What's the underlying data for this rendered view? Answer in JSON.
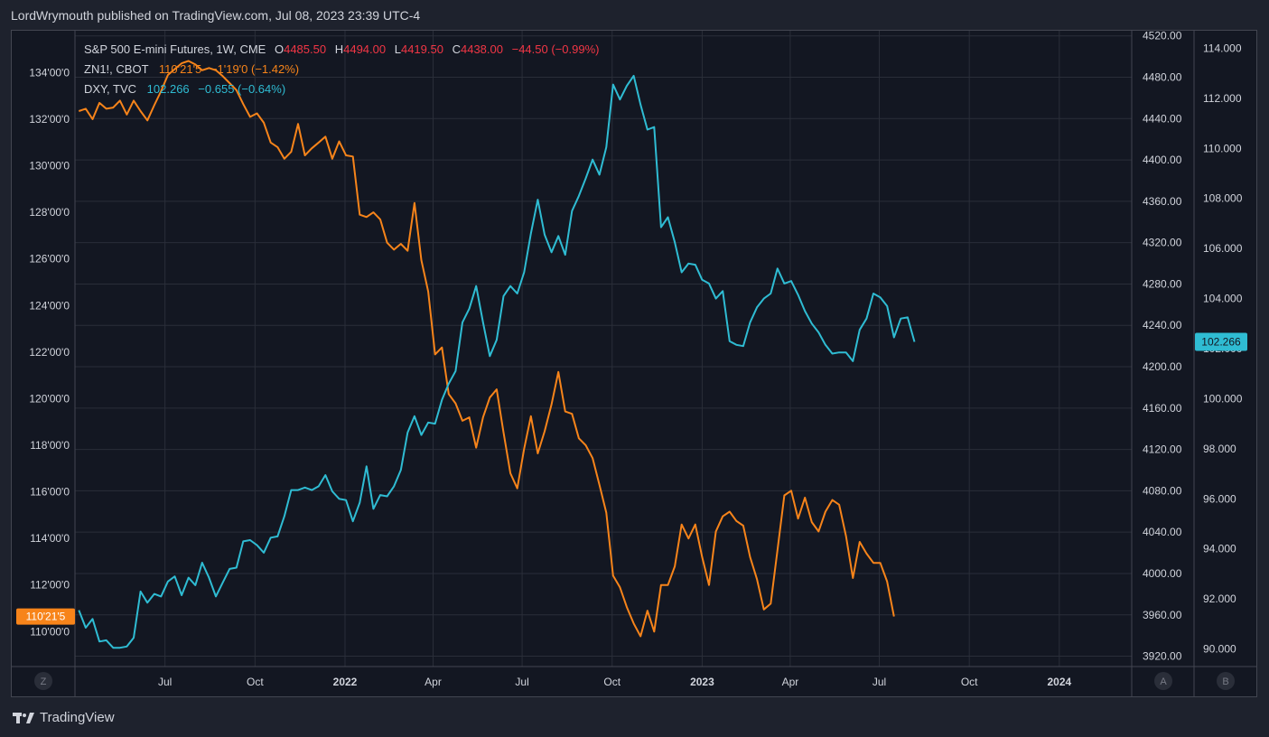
{
  "header": {
    "text": "LordWrymouth published on TradingView.com, Jul 08, 2023 23:39 UTC-4"
  },
  "legend": {
    "es": {
      "name": "S&P 500 E-mini Futures, 1W, CME",
      "o_label": "O",
      "o": "4485.50",
      "h_label": "H",
      "h": "4494.00",
      "l_label": "L",
      "l": "4419.50",
      "c_label": "C",
      "c": "4438.00",
      "chg": "−44.50 (−0.99%)"
    },
    "zn": {
      "name": "ZN1!, CBOT",
      "value": "110'21'5",
      "chg": "−1'19'0 (−1.42%)"
    },
    "dxy": {
      "name": "DXY, TVC",
      "value": "102.266",
      "chg": "−0.655 (−0.64%)"
    }
  },
  "buttons": {
    "z": "Z",
    "a": "A",
    "b": "B"
  },
  "footer": {
    "brand": "TradingView"
  },
  "colors": {
    "zn": "#f7841a",
    "dxy": "#2fbcd3",
    "red": "#f23645",
    "bg": "#131722",
    "grid": "#2a2e39",
    "text": "#d1d4dc"
  },
  "chart_data": {
    "type": "line",
    "x_tick_labels": [
      "Jul",
      "Oct",
      "2022",
      "Apr",
      "Jul",
      "Oct",
      "2023",
      "Apr",
      "Jul",
      "Oct",
      "2024"
    ],
    "axes": {
      "left": {
        "series": "ZN1!",
        "ticks": [
          "110'00'0",
          "112'00'0",
          "114'00'0",
          "116'00'0",
          "118'00'0",
          "120'00'0",
          "122'00'0",
          "124'00'0",
          "126'00'0",
          "128'00'0",
          "130'00'0",
          "132'00'0",
          "134'00'0"
        ],
        "range": [
          108.5,
          135.8
        ],
        "current_label": "110'21'5"
      },
      "mid": {
        "series": "S&P 500 E-mini Futures",
        "ticks": [
          "3920.00",
          "3960.00",
          "4000.00",
          "4040.00",
          "4080.00",
          "4120.00",
          "4160.00",
          "4200.00",
          "4240.00",
          "4280.00",
          "4320.00",
          "4360.00",
          "4400.00",
          "4440.00",
          "4480.00",
          "4520.00"
        ],
        "range": [
          3910,
          4525
        ]
      },
      "right": {
        "series": "DXY",
        "ticks": [
          "90.000",
          "92.000",
          "94.000",
          "96.000",
          "98.000",
          "100.000",
          "102.000",
          "104.000",
          "106.000",
          "108.000",
          "110.000",
          "112.000",
          "114.000"
        ],
        "range": [
          89.3,
          114.7
        ],
        "current_label": "102.266"
      }
    },
    "date_range": [
      "2021-03-31",
      "2024-03-15"
    ],
    "series": [
      {
        "name": "ZN1!",
        "axis": "left",
        "points": [
          [
            "2021-04-04",
            132.35
          ],
          [
            "2021-04-11",
            132.45
          ],
          [
            "2021-04-18",
            132.0
          ],
          [
            "2021-04-25",
            132.7
          ],
          [
            "2021-05-02",
            132.45
          ],
          [
            "2021-05-09",
            132.5
          ],
          [
            "2021-05-16",
            132.8
          ],
          [
            "2021-05-23",
            132.2
          ],
          [
            "2021-05-30",
            132.8
          ],
          [
            "2021-06-06",
            132.35
          ],
          [
            "2021-06-13",
            131.95
          ],
          [
            "2021-06-20",
            132.6
          ],
          [
            "2021-06-27",
            133.2
          ],
          [
            "2021-07-04",
            133.9
          ],
          [
            "2021-07-11",
            134.15
          ],
          [
            "2021-07-18",
            134.4
          ],
          [
            "2021-07-25",
            134.5
          ],
          [
            "2021-08-01",
            134.35
          ],
          [
            "2021-08-08",
            134.1
          ],
          [
            "2021-08-15",
            134.2
          ],
          [
            "2021-08-22",
            134.1
          ],
          [
            "2021-08-29",
            133.85
          ],
          [
            "2021-09-05",
            133.55
          ],
          [
            "2021-09-12",
            133.25
          ],
          [
            "2021-09-19",
            132.65
          ],
          [
            "2021-09-26",
            132.1
          ],
          [
            "2021-10-03",
            132.25
          ],
          [
            "2021-10-10",
            131.85
          ],
          [
            "2021-10-17",
            131.0
          ],
          [
            "2021-10-24",
            130.8
          ],
          [
            "2021-10-31",
            130.3
          ],
          [
            "2021-11-07",
            130.6
          ],
          [
            "2021-11-14",
            131.8
          ],
          [
            "2021-11-21",
            130.45
          ],
          [
            "2021-11-28",
            130.75
          ],
          [
            "2021-12-05",
            131.0
          ],
          [
            "2021-12-12",
            131.25
          ],
          [
            "2021-12-19",
            130.3
          ],
          [
            "2021-12-26",
            131.05
          ],
          [
            "2022-01-02",
            130.45
          ],
          [
            "2022-01-09",
            130.4
          ],
          [
            "2022-01-16",
            127.9
          ],
          [
            "2022-01-23",
            127.8
          ],
          [
            "2022-01-30",
            128.0
          ],
          [
            "2022-02-06",
            127.7
          ],
          [
            "2022-02-13",
            126.7
          ],
          [
            "2022-02-20",
            126.4
          ],
          [
            "2022-02-27",
            126.65
          ],
          [
            "2022-03-06",
            126.35
          ],
          [
            "2022-03-13",
            128.4
          ],
          [
            "2022-03-20",
            125.95
          ],
          [
            "2022-03-27",
            124.6
          ],
          [
            "2022-04-03",
            121.9
          ],
          [
            "2022-04-10",
            122.2
          ],
          [
            "2022-04-17",
            120.2
          ],
          [
            "2022-04-24",
            119.8
          ],
          [
            "2022-05-01",
            119.05
          ],
          [
            "2022-05-08",
            119.2
          ],
          [
            "2022-05-15",
            117.9
          ],
          [
            "2022-05-22",
            119.2
          ],
          [
            "2022-05-29",
            120.05
          ],
          [
            "2022-06-05",
            120.4
          ],
          [
            "2022-06-12",
            118.55
          ],
          [
            "2022-06-19",
            116.8
          ],
          [
            "2022-06-26",
            116.15
          ],
          [
            "2022-07-03",
            117.85
          ],
          [
            "2022-07-10",
            119.25
          ],
          [
            "2022-07-17",
            117.65
          ],
          [
            "2022-07-24",
            118.6
          ],
          [
            "2022-07-31",
            119.75
          ],
          [
            "2022-08-07",
            121.15
          ],
          [
            "2022-08-14",
            119.45
          ],
          [
            "2022-08-21",
            119.35
          ],
          [
            "2022-08-28",
            118.3
          ],
          [
            "2022-09-04",
            118.0
          ],
          [
            "2022-09-11",
            117.45
          ],
          [
            "2022-09-18",
            116.3
          ],
          [
            "2022-09-25",
            115.1
          ],
          [
            "2022-10-02",
            112.4
          ],
          [
            "2022-10-09",
            111.9
          ],
          [
            "2022-10-16",
            111.05
          ],
          [
            "2022-10-23",
            110.35
          ],
          [
            "2022-10-30",
            109.8
          ],
          [
            "2022-11-06",
            110.9
          ],
          [
            "2022-11-13",
            110.0
          ],
          [
            "2022-11-20",
            112.0
          ],
          [
            "2022-11-27",
            112.0
          ],
          [
            "2022-12-04",
            112.8
          ],
          [
            "2022-12-11",
            114.6
          ],
          [
            "2022-12-18",
            114.0
          ],
          [
            "2022-12-25",
            114.6
          ],
          [
            "2023-01-01",
            113.2
          ],
          [
            "2023-01-08",
            112.0
          ],
          [
            "2023-01-15",
            114.3
          ],
          [
            "2023-01-22",
            114.95
          ],
          [
            "2023-01-29",
            115.15
          ],
          [
            "2023-02-05",
            114.75
          ],
          [
            "2023-02-12",
            114.55
          ],
          [
            "2023-02-19",
            113.2
          ],
          [
            "2023-02-26",
            112.25
          ],
          [
            "2023-03-05",
            110.95
          ],
          [
            "2023-03-12",
            111.2
          ],
          [
            "2023-03-19",
            113.5
          ],
          [
            "2023-03-26",
            115.85
          ],
          [
            "2023-04-02",
            116.05
          ],
          [
            "2023-04-09",
            114.85
          ],
          [
            "2023-04-16",
            115.75
          ],
          [
            "2023-04-23",
            114.7
          ],
          [
            "2023-04-30",
            114.3
          ],
          [
            "2023-05-07",
            115.15
          ],
          [
            "2023-05-14",
            115.65
          ],
          [
            "2023-05-21",
            115.45
          ],
          [
            "2023-05-28",
            114.1
          ],
          [
            "2023-06-04",
            112.3
          ],
          [
            "2023-06-11",
            113.85
          ],
          [
            "2023-06-18",
            113.35
          ],
          [
            "2023-06-25",
            112.95
          ],
          [
            "2023-07-02",
            112.95
          ],
          [
            "2023-07-09",
            112.15
          ],
          [
            "2023-07-16",
            110.65
          ]
        ]
      },
      {
        "name": "DXY",
        "axis": "right",
        "points": [
          [
            "2021-04-04",
            91.55
          ],
          [
            "2021-04-11",
            90.85
          ],
          [
            "2021-04-18",
            91.2
          ],
          [
            "2021-04-25",
            90.3
          ],
          [
            "2021-05-02",
            90.35
          ],
          [
            "2021-05-09",
            90.05
          ],
          [
            "2021-05-16",
            90.05
          ],
          [
            "2021-05-23",
            90.1
          ],
          [
            "2021-05-30",
            90.45
          ],
          [
            "2021-06-06",
            92.3
          ],
          [
            "2021-06-13",
            91.85
          ],
          [
            "2021-06-20",
            92.2
          ],
          [
            "2021-06-27",
            92.1
          ],
          [
            "2021-07-04",
            92.7
          ],
          [
            "2021-07-11",
            92.9
          ],
          [
            "2021-07-18",
            92.15
          ],
          [
            "2021-07-25",
            92.85
          ],
          [
            "2021-08-01",
            92.55
          ],
          [
            "2021-08-08",
            93.45
          ],
          [
            "2021-08-15",
            92.85
          ],
          [
            "2021-08-22",
            92.1
          ],
          [
            "2021-08-29",
            92.65
          ],
          [
            "2021-09-05",
            93.2
          ],
          [
            "2021-09-12",
            93.25
          ],
          [
            "2021-09-19",
            94.3
          ],
          [
            "2021-09-26",
            94.35
          ],
          [
            "2021-10-03",
            94.15
          ],
          [
            "2021-10-10",
            93.85
          ],
          [
            "2021-10-17",
            94.45
          ],
          [
            "2021-10-24",
            94.5
          ],
          [
            "2021-10-31",
            95.3
          ],
          [
            "2021-11-07",
            96.35
          ],
          [
            "2021-11-14",
            96.35
          ],
          [
            "2021-11-21",
            96.45
          ],
          [
            "2021-11-28",
            96.35
          ],
          [
            "2021-12-05",
            96.5
          ],
          [
            "2021-12-12",
            96.95
          ],
          [
            "2021-12-19",
            96.3
          ],
          [
            "2021-12-26",
            96.0
          ],
          [
            "2022-01-02",
            95.95
          ],
          [
            "2022-01-09",
            95.1
          ],
          [
            "2022-01-16",
            95.85
          ],
          [
            "2022-01-23",
            97.3
          ],
          [
            "2022-01-30",
            95.6
          ],
          [
            "2022-02-06",
            96.15
          ],
          [
            "2022-02-13",
            96.1
          ],
          [
            "2022-02-20",
            96.5
          ],
          [
            "2022-02-27",
            97.15
          ],
          [
            "2022-03-06",
            98.65
          ],
          [
            "2022-03-13",
            99.3
          ],
          [
            "2022-03-20",
            98.55
          ],
          [
            "2022-03-27",
            99.05
          ],
          [
            "2022-04-03",
            99.0
          ],
          [
            "2022-04-10",
            99.95
          ],
          [
            "2022-04-17",
            100.6
          ],
          [
            "2022-04-24",
            101.1
          ],
          [
            "2022-05-01",
            103.05
          ],
          [
            "2022-05-08",
            103.6
          ],
          [
            "2022-05-15",
            104.5
          ],
          [
            "2022-05-22",
            103.05
          ],
          [
            "2022-05-29",
            101.7
          ],
          [
            "2022-06-05",
            102.35
          ],
          [
            "2022-06-12",
            104.1
          ],
          [
            "2022-06-19",
            104.5
          ],
          [
            "2022-06-26",
            104.2
          ],
          [
            "2022-07-03",
            105.05
          ],
          [
            "2022-07-10",
            106.6
          ],
          [
            "2022-07-17",
            107.95
          ],
          [
            "2022-07-24",
            106.55
          ],
          [
            "2022-07-31",
            105.85
          ],
          [
            "2022-08-07",
            106.5
          ],
          [
            "2022-08-14",
            105.75
          ],
          [
            "2022-08-21",
            107.5
          ],
          [
            "2022-08-28",
            108.1
          ],
          [
            "2022-09-04",
            108.8
          ],
          [
            "2022-09-11",
            109.55
          ],
          [
            "2022-09-18",
            108.95
          ],
          [
            "2022-09-25",
            110.05
          ],
          [
            "2022-10-02",
            112.55
          ],
          [
            "2022-10-09",
            111.95
          ],
          [
            "2022-10-16",
            112.5
          ],
          [
            "2022-10-23",
            112.9
          ],
          [
            "2022-10-30",
            111.75
          ],
          [
            "2022-11-06",
            110.75
          ],
          [
            "2022-11-13",
            110.85
          ],
          [
            "2022-11-20",
            106.85
          ],
          [
            "2022-11-27",
            107.25
          ],
          [
            "2022-12-04",
            106.25
          ],
          [
            "2022-12-11",
            105.05
          ],
          [
            "2022-12-18",
            105.4
          ],
          [
            "2022-12-25",
            105.35
          ],
          [
            "2023-01-01",
            104.75
          ],
          [
            "2023-01-08",
            104.6
          ],
          [
            "2023-01-15",
            104.0
          ],
          [
            "2023-01-22",
            104.3
          ],
          [
            "2023-01-29",
            102.3
          ],
          [
            "2023-02-05",
            102.15
          ],
          [
            "2023-02-12",
            102.1
          ],
          [
            "2023-02-19",
            103.05
          ],
          [
            "2023-02-26",
            103.65
          ],
          [
            "2023-03-05",
            104.0
          ],
          [
            "2023-03-12",
            104.2
          ],
          [
            "2023-03-19",
            105.2
          ],
          [
            "2023-03-26",
            104.6
          ],
          [
            "2023-04-02",
            104.7
          ],
          [
            "2023-04-09",
            104.15
          ],
          [
            "2023-04-16",
            103.5
          ],
          [
            "2023-04-23",
            103.0
          ],
          [
            "2023-04-30",
            102.65
          ],
          [
            "2023-05-07",
            102.15
          ],
          [
            "2023-05-14",
            101.8
          ],
          [
            "2023-05-21",
            101.85
          ],
          [
            "2023-05-28",
            101.85
          ],
          [
            "2023-06-04",
            101.5
          ],
          [
            "2023-06-11",
            102.75
          ],
          [
            "2023-06-18",
            103.2
          ],
          [
            "2023-06-25",
            104.2
          ],
          [
            "2023-07-02",
            104.05
          ],
          [
            "2023-07-09",
            103.7
          ],
          [
            "2023-07-16",
            102.45
          ],
          [
            "2023-07-23",
            103.2
          ],
          [
            "2023-07-30",
            103.25
          ],
          [
            "2023-08-06",
            102.27
          ]
        ]
      }
    ]
  }
}
